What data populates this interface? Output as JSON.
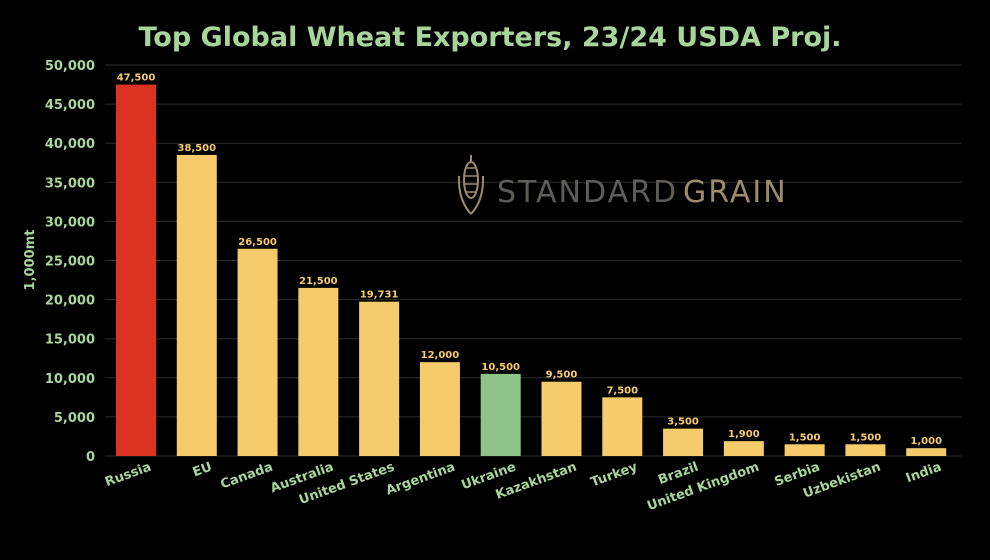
{
  "colors": {
    "background": "#000000",
    "accent_text": "#a8d59a",
    "bar_default": "#f6cb6c",
    "bar_russia": "#dc3221",
    "bar_ukraine": "#8fc489",
    "grid": "#2e2e2e",
    "value_label": "#f6cb6c",
    "watermark_dark": "#5f5c57",
    "watermark_light": "#9b8c6b"
  },
  "watermark": {
    "text_part1": "STANDARD",
    "text_part2": "GRAIN",
    "icon": "corn-icon"
  },
  "chart_data": {
    "type": "bar",
    "title": "Top Global Wheat Exporters, 23/24 USDA Proj.",
    "ylabel": "1,000mt",
    "xlabel": "",
    "ylim": [
      0,
      50000
    ],
    "yticks": [
      0,
      5000,
      10000,
      15000,
      20000,
      25000,
      30000,
      35000,
      40000,
      45000,
      50000
    ],
    "ytick_labels": [
      "0",
      "5,000",
      "10,000",
      "15,000",
      "20,000",
      "25,000",
      "30,000",
      "35,000",
      "40,000",
      "45,000",
      "50,000"
    ],
    "grid": true,
    "categories": [
      "Russia",
      "EU",
      "Canada",
      "Australia",
      "United States",
      "Argentina",
      "Ukraine",
      "Kazakhstan",
      "Turkey",
      "Brazil",
      "United Kingdom",
      "Serbia",
      "Uzbekistan",
      "India"
    ],
    "values": [
      47500,
      38500,
      26500,
      21500,
      19731,
      12000,
      10500,
      9500,
      7500,
      3500,
      1900,
      1500,
      1500,
      1000
    ],
    "value_labels": [
      "47,500",
      "38,500",
      "26,500",
      "21,500",
      "19,731",
      "12,000",
      "10,500",
      "9,500",
      "7,500",
      "3,500",
      "1,900",
      "1,500",
      "1,500",
      "1,000"
    ],
    "highlight": {
      "Russia": "#dc3221",
      "Ukraine": "#8fc489"
    }
  }
}
